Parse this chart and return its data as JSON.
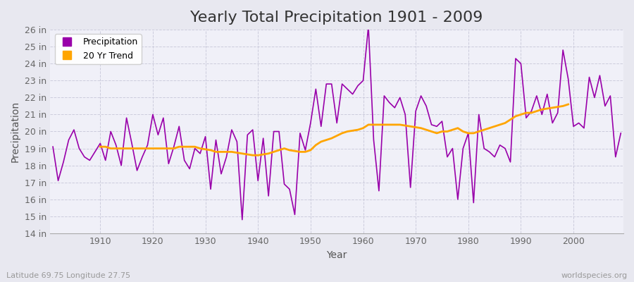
{
  "title": "Yearly Total Precipitation 1901 - 2009",
  "xlabel": "Year",
  "ylabel": "Precipitation",
  "subtitle": "Latitude 69.75 Longitude 27.75",
  "watermark": "worldspecies.org",
  "years": [
    1901,
    1902,
    1903,
    1904,
    1905,
    1906,
    1907,
    1908,
    1909,
    1910,
    1911,
    1912,
    1913,
    1914,
    1915,
    1916,
    1917,
    1918,
    1919,
    1920,
    1921,
    1922,
    1923,
    1924,
    1925,
    1926,
    1927,
    1928,
    1929,
    1930,
    1931,
    1932,
    1933,
    1934,
    1935,
    1936,
    1937,
    1938,
    1939,
    1940,
    1941,
    1942,
    1943,
    1944,
    1945,
    1946,
    1947,
    1948,
    1949,
    1950,
    1951,
    1952,
    1953,
    1954,
    1955,
    1956,
    1957,
    1958,
    1959,
    1960,
    1961,
    1962,
    1963,
    1964,
    1965,
    1966,
    1967,
    1968,
    1969,
    1970,
    1971,
    1972,
    1973,
    1974,
    1975,
    1976,
    1977,
    1978,
    1979,
    1980,
    1981,
    1982,
    1983,
    1984,
    1985,
    1986,
    1987,
    1988,
    1989,
    1990,
    1991,
    1992,
    1993,
    1994,
    1995,
    1996,
    1997,
    1998,
    1999,
    2000,
    2001,
    2002,
    2003,
    2004,
    2005,
    2006,
    2007,
    2008,
    2009
  ],
  "precip": [
    19.1,
    17.1,
    18.2,
    19.5,
    20.1,
    19.0,
    18.5,
    18.3,
    18.8,
    19.3,
    18.3,
    20.0,
    19.2,
    18.0,
    20.8,
    19.3,
    17.7,
    18.5,
    19.2,
    21.0,
    19.8,
    20.8,
    18.1,
    19.1,
    20.3,
    18.3,
    17.8,
    19.0,
    18.7,
    19.7,
    16.6,
    19.5,
    17.5,
    18.5,
    20.1,
    19.4,
    14.8,
    19.8,
    20.1,
    17.1,
    19.6,
    16.2,
    20.0,
    20.0,
    16.9,
    16.6,
    15.1,
    19.9,
    18.9,
    20.5,
    22.5,
    20.3,
    22.8,
    22.8,
    20.5,
    22.8,
    22.5,
    22.2,
    22.7,
    23.0,
    26.2,
    19.5,
    16.5,
    22.1,
    21.7,
    21.4,
    22.0,
    21.0,
    16.7,
    21.2,
    22.1,
    21.5,
    20.4,
    20.3,
    20.6,
    18.5,
    19.0,
    16.0,
    19.0,
    19.9,
    15.8,
    21.0,
    19.0,
    18.8,
    18.5,
    19.2,
    19.0,
    18.2,
    24.3,
    24.0,
    20.8,
    21.2,
    22.1,
    21.0,
    22.2,
    20.5,
    21.1,
    24.8,
    23.1,
    20.3,
    20.5,
    20.2,
    23.2,
    22.0,
    23.3,
    21.5,
    22.1,
    18.5,
    19.9
  ],
  "trend": [
    null,
    null,
    null,
    null,
    null,
    null,
    null,
    null,
    null,
    19.1,
    19.1,
    19.0,
    19.0,
    19.0,
    19.0,
    19.0,
    19.0,
    19.0,
    19.0,
    19.0,
    19.0,
    19.0,
    19.0,
    19.0,
    19.1,
    19.1,
    19.1,
    19.1,
    19.0,
    18.95,
    18.9,
    18.8,
    18.8,
    18.8,
    18.8,
    18.75,
    18.7,
    18.65,
    18.6,
    18.6,
    18.65,
    18.7,
    18.8,
    18.9,
    19.0,
    18.9,
    18.85,
    18.8,
    18.8,
    18.9,
    19.2,
    19.4,
    19.5,
    19.6,
    19.75,
    19.9,
    20.0,
    20.05,
    20.1,
    20.2,
    20.4,
    20.4,
    20.4,
    20.4,
    20.4,
    20.4,
    20.4,
    20.35,
    20.3,
    20.25,
    20.2,
    20.1,
    20.0,
    19.9,
    20.0,
    20.0,
    20.1,
    20.2,
    20.0,
    19.9,
    19.9,
    20.0,
    20.1,
    20.2,
    20.3,
    20.4,
    20.5,
    20.7,
    20.9,
    21.0,
    21.1,
    21.1,
    21.2,
    21.3,
    21.35,
    21.4,
    21.45,
    21.5,
    21.6,
    null,
    null,
    null,
    null,
    null,
    null,
    null,
    null,
    null
  ],
  "precip_color": "#9900aa",
  "trend_color": "#FFA500",
  "bg_color": "#e8e8f0",
  "plot_bg_color": "#f0f0f8",
  "grid_color": "#ccccdd",
  "ylim": [
    14,
    26
  ],
  "ytick_labels": [
    "14 in",
    "15 in",
    "16 in",
    "17 in",
    "18 in",
    "19 in",
    "20 in",
    "21 in",
    "22 in",
    "23 in",
    "24 in",
    "25 in",
    "26 in"
  ],
  "ytick_values": [
    14,
    15,
    16,
    17,
    18,
    19,
    20,
    21,
    22,
    23,
    24,
    25,
    26
  ],
  "xticks": [
    1910,
    1920,
    1930,
    1940,
    1950,
    1960,
    1970,
    1980,
    1990,
    2000
  ],
  "title_fontsize": 16,
  "label_fontsize": 10,
  "tick_fontsize": 9,
  "legend_labels": [
    "Precipitation",
    "20 Yr Trend"
  ]
}
